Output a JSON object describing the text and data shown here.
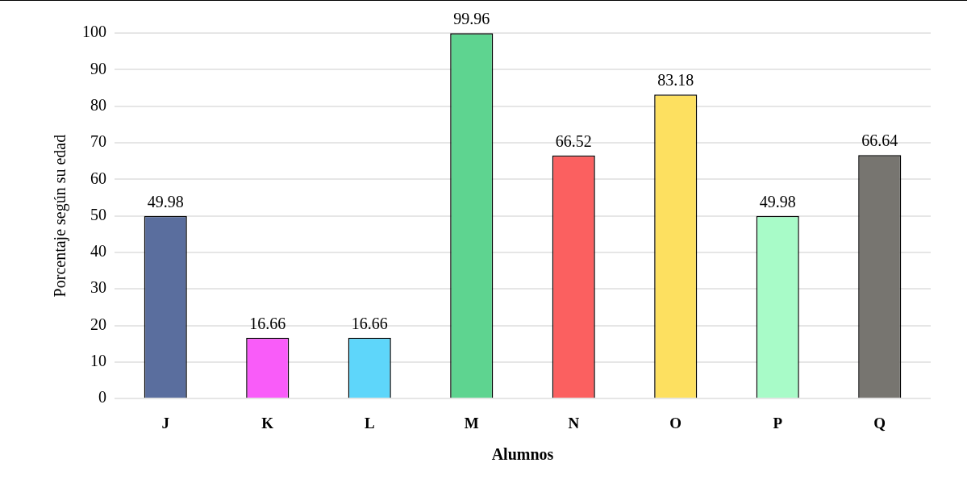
{
  "chart_data": {
    "type": "bar",
    "xlabel": "Alumnos",
    "ylabel": "Porcentaje según su edad",
    "categories": [
      "J",
      "K",
      "L",
      "M",
      "N",
      "O",
      "P",
      "Q"
    ],
    "values": [
      49.98,
      16.66,
      16.66,
      99.96,
      66.52,
      83.18,
      49.98,
      66.64
    ],
    "colors": [
      "#5a6e9e",
      "#f95cf9",
      "#5ed6fa",
      "#5ed490",
      "#fb6060",
      "#fde060",
      "#a8fbc8",
      "#777570"
    ],
    "ylim": [
      0,
      100
    ],
    "yticks": [
      0,
      10,
      20,
      30,
      40,
      50,
      60,
      70,
      80,
      90,
      100
    ],
    "grid": "y",
    "data_labels": true,
    "legend": false
  }
}
